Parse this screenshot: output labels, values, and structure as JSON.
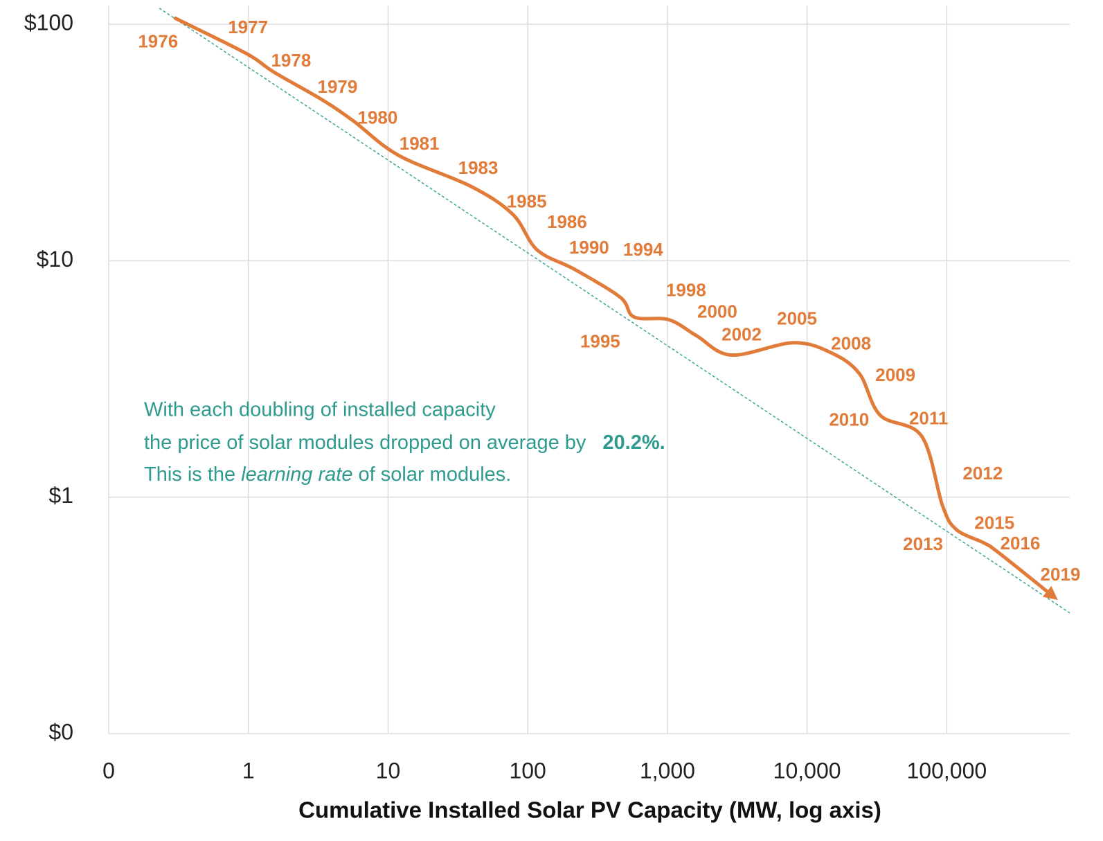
{
  "chart_data": {
    "type": "line",
    "x_label": "Cumulative Installed Solar PV Capacity (MW, log axis)",
    "xscale": "log",
    "yscale": "log",
    "grid": true,
    "xlim": [
      0.1,
      760000
    ],
    "ylim": [
      0.1,
      120
    ],
    "xticks": [
      {
        "value": 0.1,
        "label": "0"
      },
      1,
      10,
      100,
      {
        "value": 1000,
        "label": "1,000"
      },
      {
        "value": 10000,
        "label": "10,000"
      },
      {
        "value": 100000,
        "label": "100,000"
      }
    ],
    "yticks": [
      {
        "value": 0.1,
        "label": "$0"
      },
      {
        "value": 1,
        "label": "$1"
      },
      {
        "value": 10,
        "label": "$10"
      },
      {
        "value": 100,
        "label": "$100"
      }
    ],
    "series": [
      {
        "color": "#e07b39",
        "x": [
          0.3,
          0.96,
          1.52,
          3.38,
          5.65,
          11.9,
          39.4,
          78.2,
          117,
          219,
          460,
          578,
          1023,
          1616,
          2864,
          8000,
          15000,
          23700,
          33400,
          66200,
          93300,
          117000,
          185000,
          233000,
          581000
        ],
        "values": [
          106,
          75.4,
          62.8,
          47.9,
          39,
          27.9,
          20.6,
          15.7,
          11.1,
          9.16,
          7.0,
          5.78,
          5.63,
          4.82,
          3.99,
          4.5,
          4.07,
          3.33,
          2.22,
          1.81,
          0.92,
          0.73,
          0.64,
          0.585,
          0.38
        ],
        "point_labels": [
          "1976",
          "1977",
          "1978",
          "1979",
          "1980",
          "1981",
          "1983",
          "1985",
          "1986",
          "1990",
          "1994",
          "1995",
          "1998",
          "2000",
          "2002",
          "2005",
          "2008",
          "2009",
          "2010",
          "2011",
          "2012",
          "2013",
          "2015",
          "2016",
          "2019"
        ]
      }
    ],
    "trend_line": {
      "color": "#3aa59a",
      "x": [
        0.23,
        760000
      ],
      "values": [
        117,
        0.324
      ]
    },
    "annotation": {
      "color": "#2e9a8e",
      "line1": "With each doubling of installed capacity",
      "line2": "the price of solar modules dropped on average by",
      "rate": "20.2%.",
      "line3_start": "This is the",
      "line3_italic": "learning rate",
      "line3_end": "of solar modules."
    }
  }
}
